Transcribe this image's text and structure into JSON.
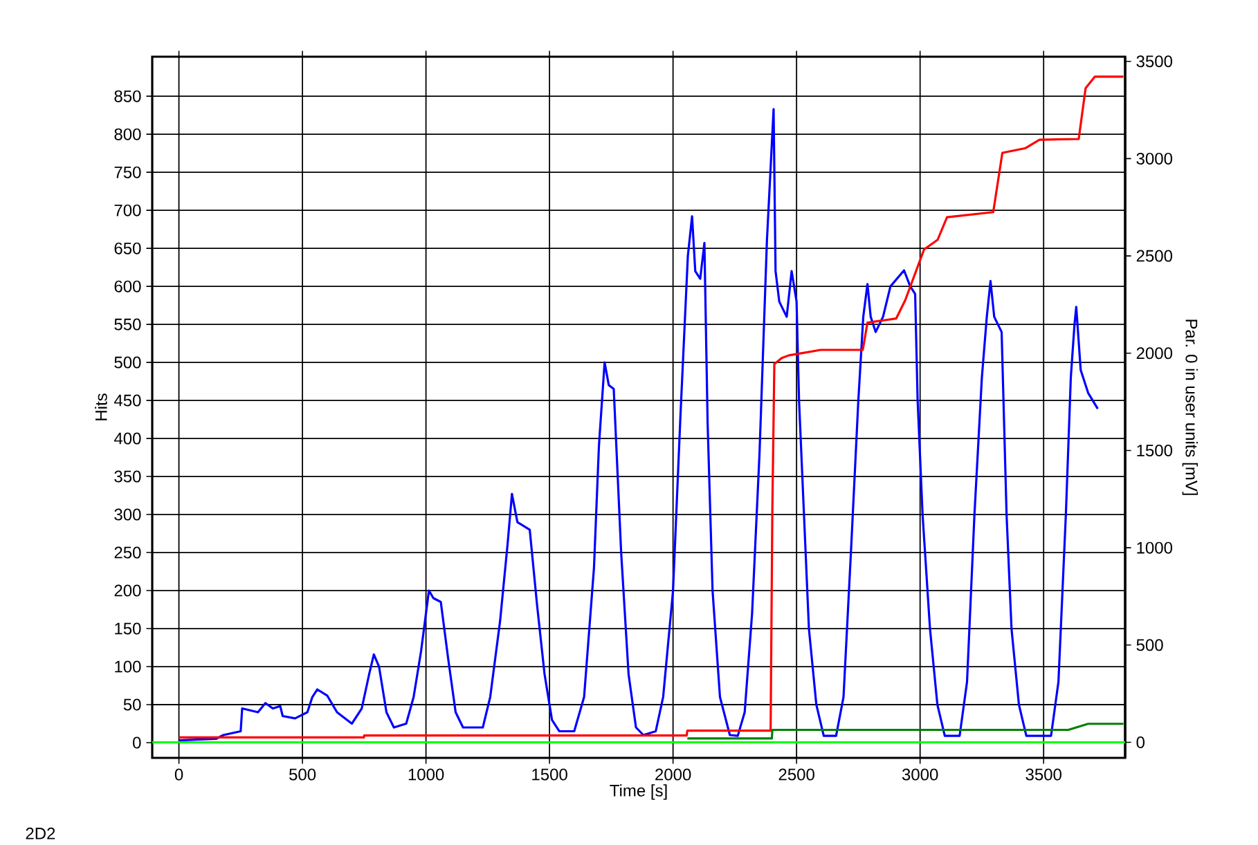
{
  "chart_data": {
    "type": "line",
    "xlabel": "Time [s]",
    "ylabel": "Hits",
    "y2label": "Par. 0 in user units [mV]",
    "annotations": [
      "2D2"
    ],
    "xlim": [
      -108,
      3830
    ],
    "ylim": [
      -20,
      902
    ],
    "y2lim": [
      -80,
      3524
    ],
    "xticks": [
      0,
      500,
      1000,
      1500,
      2000,
      2500,
      3000,
      3500
    ],
    "yticks": [
      0,
      50,
      100,
      150,
      200,
      250,
      300,
      350,
      400,
      450,
      500,
      550,
      600,
      650,
      700,
      750,
      800,
      850
    ],
    "y2ticks": [
      0,
      500,
      1000,
      1500,
      2000,
      2500,
      3000,
      3500
    ],
    "grid": true,
    "series": [
      {
        "color": "#0000ff",
        "x": [
          0,
          150,
          180,
          250,
          256,
          320,
          350,
          380,
          410,
          420,
          470,
          520,
          540,
          560,
          600,
          640,
          700,
          740,
          770,
          789,
          810,
          840,
          870,
          920,
          950,
          980,
          1012,
          1030,
          1060,
          1090,
          1120,
          1150,
          1230,
          1260,
          1300,
          1330,
          1348,
          1370,
          1420,
          1450,
          1480,
          1510,
          1540,
          1600,
          1640,
          1680,
          1700,
          1723,
          1740,
          1760,
          1790,
          1820,
          1850,
          1880,
          1930,
          1960,
          2000,
          2030,
          2060,
          2077,
          2090,
          2110,
          2127,
          2140,
          2160,
          2190,
          2230,
          2262,
          2290,
          2320,
          2350,
          2380,
          2407,
          2415,
          2430,
          2460,
          2480,
          2500,
          2510,
          2530,
          2550,
          2580,
          2610,
          2660,
          2690,
          2720,
          2750,
          2770,
          2787,
          2800,
          2820,
          2850,
          2880,
          2935,
          2960,
          2980,
          2990,
          3010,
          3040,
          3070,
          3100,
          3160,
          3190,
          3220,
          3250,
          3270,
          3285,
          3300,
          3330,
          3350,
          3370,
          3400,
          3430,
          3530,
          3560,
          3590,
          3610,
          3625,
          3632,
          3650,
          3680,
          3719
        ],
        "values": [
          3,
          5,
          10,
          15,
          45,
          40,
          52,
          45,
          48,
          35,
          32,
          40,
          60,
          70,
          62,
          40,
          25,
          45,
          90,
          116,
          100,
          40,
          20,
          25,
          60,
          120,
          200,
          190,
          185,
          110,
          40,
          20,
          20,
          60,
          160,
          260,
          327,
          290,
          280,
          180,
          90,
          30,
          15,
          15,
          60,
          230,
          390,
          500,
          470,
          465,
          250,
          90,
          20,
          10,
          15,
          60,
          200,
          430,
          640,
          692,
          620,
          610,
          657,
          420,
          200,
          60,
          10,
          9,
          40,
          170,
          380,
          660,
          833,
          620,
          580,
          560,
          620,
          580,
          450,
          300,
          150,
          50,
          9,
          9,
          60,
          250,
          450,
          560,
          603,
          560,
          540,
          560,
          600,
          621,
          600,
          590,
          450,
          300,
          150,
          50,
          9,
          9,
          80,
          300,
          480,
          560,
          607,
          560,
          540,
          300,
          150,
          50,
          9,
          9,
          80,
          300,
          480,
          550,
          573,
          490,
          460,
          439
        ]
      },
      {
        "color": "#ff0000",
        "axis": "y2",
        "x": [
          0,
          749,
          750,
          2055,
          2058,
          2395,
          2402,
          2410,
          2440,
          2469,
          2598,
          2768,
          2787,
          2903,
          2940,
          3016,
          3071,
          3109,
          3296,
          3333,
          3427,
          3483,
          3642,
          3670,
          3707,
          3823
        ],
        "values": [
          25,
          25,
          35,
          35,
          60,
          60,
          1200,
          1944,
          1975,
          1989,
          2017,
          2017,
          2157,
          2178,
          2273,
          2533,
          2583,
          2699,
          2725,
          3030,
          3054,
          3097,
          3101,
          3362,
          3421,
          3421
        ]
      },
      {
        "color": "#008000",
        "axis": "y2",
        "x": [
          2058,
          2400,
          2402,
          3600,
          3680,
          3823
        ],
        "values": [
          20,
          20,
          64,
          64,
          95,
          95
        ]
      },
      {
        "color": "#00ff00",
        "axis": "y2",
        "x": [
          -108,
          3830
        ],
        "values": [
          0,
          0
        ]
      }
    ]
  }
}
